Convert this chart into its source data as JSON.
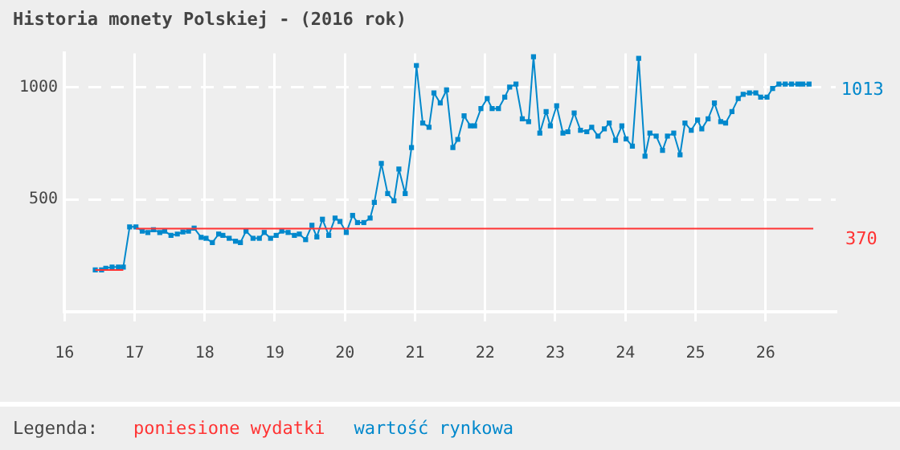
{
  "chart_data": {
    "type": "line",
    "title": "Historia monety Polskiej - (2016 rok)",
    "legend_title": "Legenda:",
    "legend": "bottom left",
    "grid": true,
    "marker": "square",
    "line_style": "solid",
    "xlim": [
      16,
      27
    ],
    "xticks": [
      16,
      17,
      18,
      19,
      20,
      21,
      22,
      23,
      24,
      25,
      26
    ],
    "ylim": [
      0,
      1150
    ],
    "yticks": [
      500,
      1000
    ],
    "annotations": [
      {
        "text": "1013",
        "x": 26.62,
        "y": 1013
      },
      {
        "text": "370",
        "x": 26.68,
        "y": 370
      }
    ],
    "series": [
      {
        "name": "poniesione wydatki",
        "color": "#ff3333",
        "marker": "none",
        "x": [
          16.44,
          16.84,
          16.9,
          17.02,
          26.68
        ],
        "values": [
          186,
          186,
          null,
          370,
          370
        ]
      },
      {
        "name": "wartość rynkowa",
        "color": "#0088cc",
        "x": [
          16.44,
          16.53,
          16.59,
          16.68,
          16.77,
          16.84,
          16.93,
          17.02,
          17.11,
          17.19,
          17.27,
          17.36,
          17.43,
          17.52,
          17.61,
          17.69,
          17.77,
          17.85,
          17.95,
          18.02,
          18.11,
          18.2,
          18.26,
          18.35,
          18.44,
          18.51,
          18.59,
          18.69,
          18.78,
          18.85,
          18.94,
          19.02,
          19.1,
          19.19,
          19.28,
          19.35,
          19.44,
          19.53,
          19.6,
          19.68,
          19.77,
          19.86,
          19.93,
          20.02,
          20.11,
          20.18,
          20.27,
          20.36,
          20.42,
          20.52,
          20.61,
          20.7,
          20.77,
          20.86,
          20.95,
          21.02,
          21.11,
          21.2,
          21.27,
          21.36,
          21.45,
          21.54,
          21.61,
          21.7,
          21.79,
          21.85,
          21.94,
          22.03,
          22.1,
          22.19,
          22.28,
          22.35,
          22.44,
          22.53,
          22.62,
          22.69,
          22.78,
          22.87,
          22.93,
          23.02,
          23.11,
          23.18,
          23.27,
          23.36,
          23.45,
          23.52,
          23.61,
          23.7,
          23.77,
          23.86,
          23.95,
          24.01,
          24.1,
          24.19,
          24.28,
          24.35,
          24.44,
          24.53,
          24.6,
          24.69,
          24.78,
          24.85,
          24.94,
          25.03,
          25.09,
          25.18,
          25.27,
          25.36,
          25.43,
          25.52,
          25.61,
          25.68,
          25.77,
          25.86,
          25.93,
          26.02,
          26.1,
          26.19,
          26.28,
          26.37,
          26.46,
          26.53,
          26.62
        ],
        "values": [
          186,
          186,
          194,
          199,
          199,
          199,
          378,
          378,
          359,
          353,
          365,
          353,
          359,
          340,
          346,
          355,
          359,
          372,
          331,
          327,
          308,
          346,
          340,
          327,
          314,
          308,
          359,
          327,
          327,
          353,
          327,
          340,
          359,
          353,
          340,
          346,
          321,
          385,
          333,
          412,
          340,
          417,
          402,
          353,
          429,
          397,
          397,
          417,
          487,
          660,
          526,
          494,
          635,
          526,
          731,
          1096,
          840,
          821,
          974,
          929,
          987,
          731,
          767,
          872,
          827,
          827,
          904,
          949,
          904,
          904,
          955,
          1000,
          1013,
          859,
          846,
          1135,
          795,
          891,
          827,
          917,
          795,
          801,
          885,
          808,
          801,
          821,
          782,
          814,
          840,
          763,
          827,
          769,
          737,
          1128,
          692,
          795,
          782,
          718,
          782,
          795,
          699,
          840,
          808,
          853,
          814,
          859,
          929,
          846,
          840,
          891,
          949,
          968,
          974,
          974,
          955,
          955,
          994,
          1013,
          1013,
          1013,
          1013,
          1013,
          1013
        ]
      }
    ]
  }
}
